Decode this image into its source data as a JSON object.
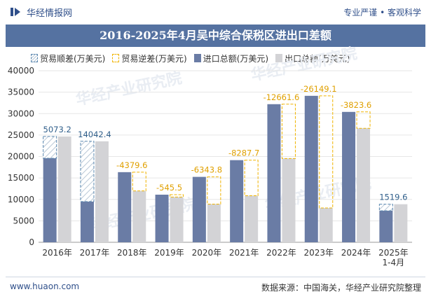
{
  "header": {
    "site_name": "华经情报网",
    "slogan": "专业严谨 • 客观科学"
  },
  "footer": {
    "url": "www.huaon.com",
    "source": "数据来源：中国海关，华经产业研究院整理"
  },
  "watermark": "华经产业研究院",
  "chart_data": {
    "type": "bar",
    "title": "2016-2025年4月吴中综合保税区进出口差额",
    "categories": [
      "2016年",
      "2017年",
      "2018年",
      "2019年",
      "2020年",
      "2021年",
      "2022年",
      "2023年",
      "2024年",
      "2025年\n1-4月"
    ],
    "ylim": [
      0,
      40000
    ],
    "yticks": [
      0,
      5000,
      10000,
      15000,
      20000,
      25000,
      30000,
      35000,
      40000
    ],
    "grid": true,
    "legend_position": "top",
    "series": [
      {
        "name": "贸易顺差(万美元)",
        "key": "surplus",
        "color": "#5b88b0"
      },
      {
        "name": "贸易逆差(万美元)",
        "key": "deficit",
        "color": "#f0b400"
      },
      {
        "name": "进口总额(万美元)",
        "key": "import",
        "color": "#6a7ca5"
      },
      {
        "name": "出口总额(万美元)",
        "key": "export",
        "color": "#d3d3d6"
      }
    ],
    "import": [
      19600,
      9500,
      16350,
      11100,
      15250,
      19150,
      32200,
      34150,
      30400,
      7350
    ],
    "export": [
      24673.2,
      23542.4,
      11970.4,
      10554.5,
      8906.2,
      10862.3,
      19538.4,
      8000.9,
      26576.4,
      8869.6
    ],
    "balance": [
      5073.2,
      14042.4,
      -4379.6,
      -545.5,
      -6343.8,
      -8287.7,
      -12661.6,
      -26149.1,
      -3823.6,
      1519.6
    ],
    "balance_labels": [
      "5073.2",
      "14042.4",
      "-4379.6",
      "-545.5",
      "-6343.8",
      "-8287.7",
      "-12661.6",
      "-26149.1",
      "-3823.6",
      "1519.6"
    ]
  }
}
